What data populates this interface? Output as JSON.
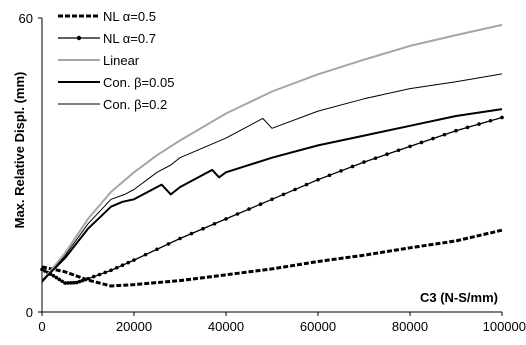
{
  "chart_data": {
    "type": "line",
    "title": "",
    "xlabel": "C3 (N-S/mm)",
    "ylabel": "Max. Relative Displ. (mm)",
    "xlim": [
      0,
      100000
    ],
    "ylim": [
      0,
      60
    ],
    "x_ticks": [
      "0",
      "20000",
      "40000",
      "60000",
      "80000",
      "100000"
    ],
    "y_ticks": [
      "0",
      "60"
    ],
    "grid": false,
    "legend_position": "top-left",
    "series": [
      {
        "name": "NL α=0.5",
        "style": "dashed-thick",
        "color": "#000000",
        "x": [
          0,
          5000,
          10000,
          15000,
          20000,
          30000,
          40000,
          50000,
          60000,
          70000,
          80000,
          90000,
          100000
        ],
        "y": [
          9.2,
          8.2,
          6.5,
          5.3,
          5.6,
          6.4,
          7.6,
          8.8,
          10.3,
          11.6,
          13.1,
          14.5,
          16.7
        ]
      },
      {
        "name": "NL α=0.7",
        "style": "line-dots",
        "color": "#000000",
        "x": [
          0,
          2500,
          5000,
          7500,
          10000,
          15000,
          20000,
          30000,
          40000,
          50000,
          60000,
          70000,
          80000,
          90000,
          100000
        ],
        "y": [
          8.7,
          7.4,
          5.9,
          6.0,
          6.8,
          8.5,
          10.6,
          15.0,
          19.0,
          23.0,
          27.0,
          30.6,
          33.8,
          37.0,
          39.7
        ]
      },
      {
        "name": "Linear",
        "style": "solid",
        "color": "#a6a6a6",
        "x": [
          0,
          5000,
          10000,
          15000,
          20000,
          25000,
          30000,
          40000,
          50000,
          60000,
          70000,
          80000,
          90000,
          100000
        ],
        "y": [
          6.3,
          12.0,
          19.0,
          24.5,
          28.5,
          32.0,
          35.0,
          40.5,
          45.0,
          48.5,
          51.5,
          54.3,
          56.5,
          58.6
        ]
      },
      {
        "name": "Con. β=0.05",
        "style": "solid-thick",
        "color": "#000000",
        "x": [
          0,
          5000,
          10000,
          15000,
          17500,
          20000,
          24000,
          26000,
          28000,
          30000,
          34000,
          37000,
          38500,
          40000,
          50000,
          60000,
          70000,
          80000,
          90000,
          100000
        ],
        "y": [
          6.3,
          11.0,
          17.0,
          21.5,
          22.5,
          23.0,
          25.0,
          26.0,
          24.0,
          25.5,
          27.5,
          29.0,
          27.5,
          28.5,
          31.5,
          34.0,
          36.0,
          38.0,
          40.0,
          41.4
        ]
      },
      {
        "name": "Con. β=0.2",
        "style": "solid-thin",
        "color": "#000000",
        "x": [
          0,
          5000,
          10000,
          15000,
          18000,
          20000,
          25000,
          28000,
          30000,
          40000,
          45000,
          48000,
          50000,
          60000,
          70000,
          80000,
          90000,
          100000
        ],
        "y": [
          6.0,
          11.5,
          18.0,
          23.0,
          24.0,
          25.0,
          28.5,
          30.0,
          31.5,
          35.5,
          38.0,
          39.5,
          37.5,
          41.0,
          43.5,
          45.6,
          47.0,
          48.6
        ]
      }
    ]
  }
}
